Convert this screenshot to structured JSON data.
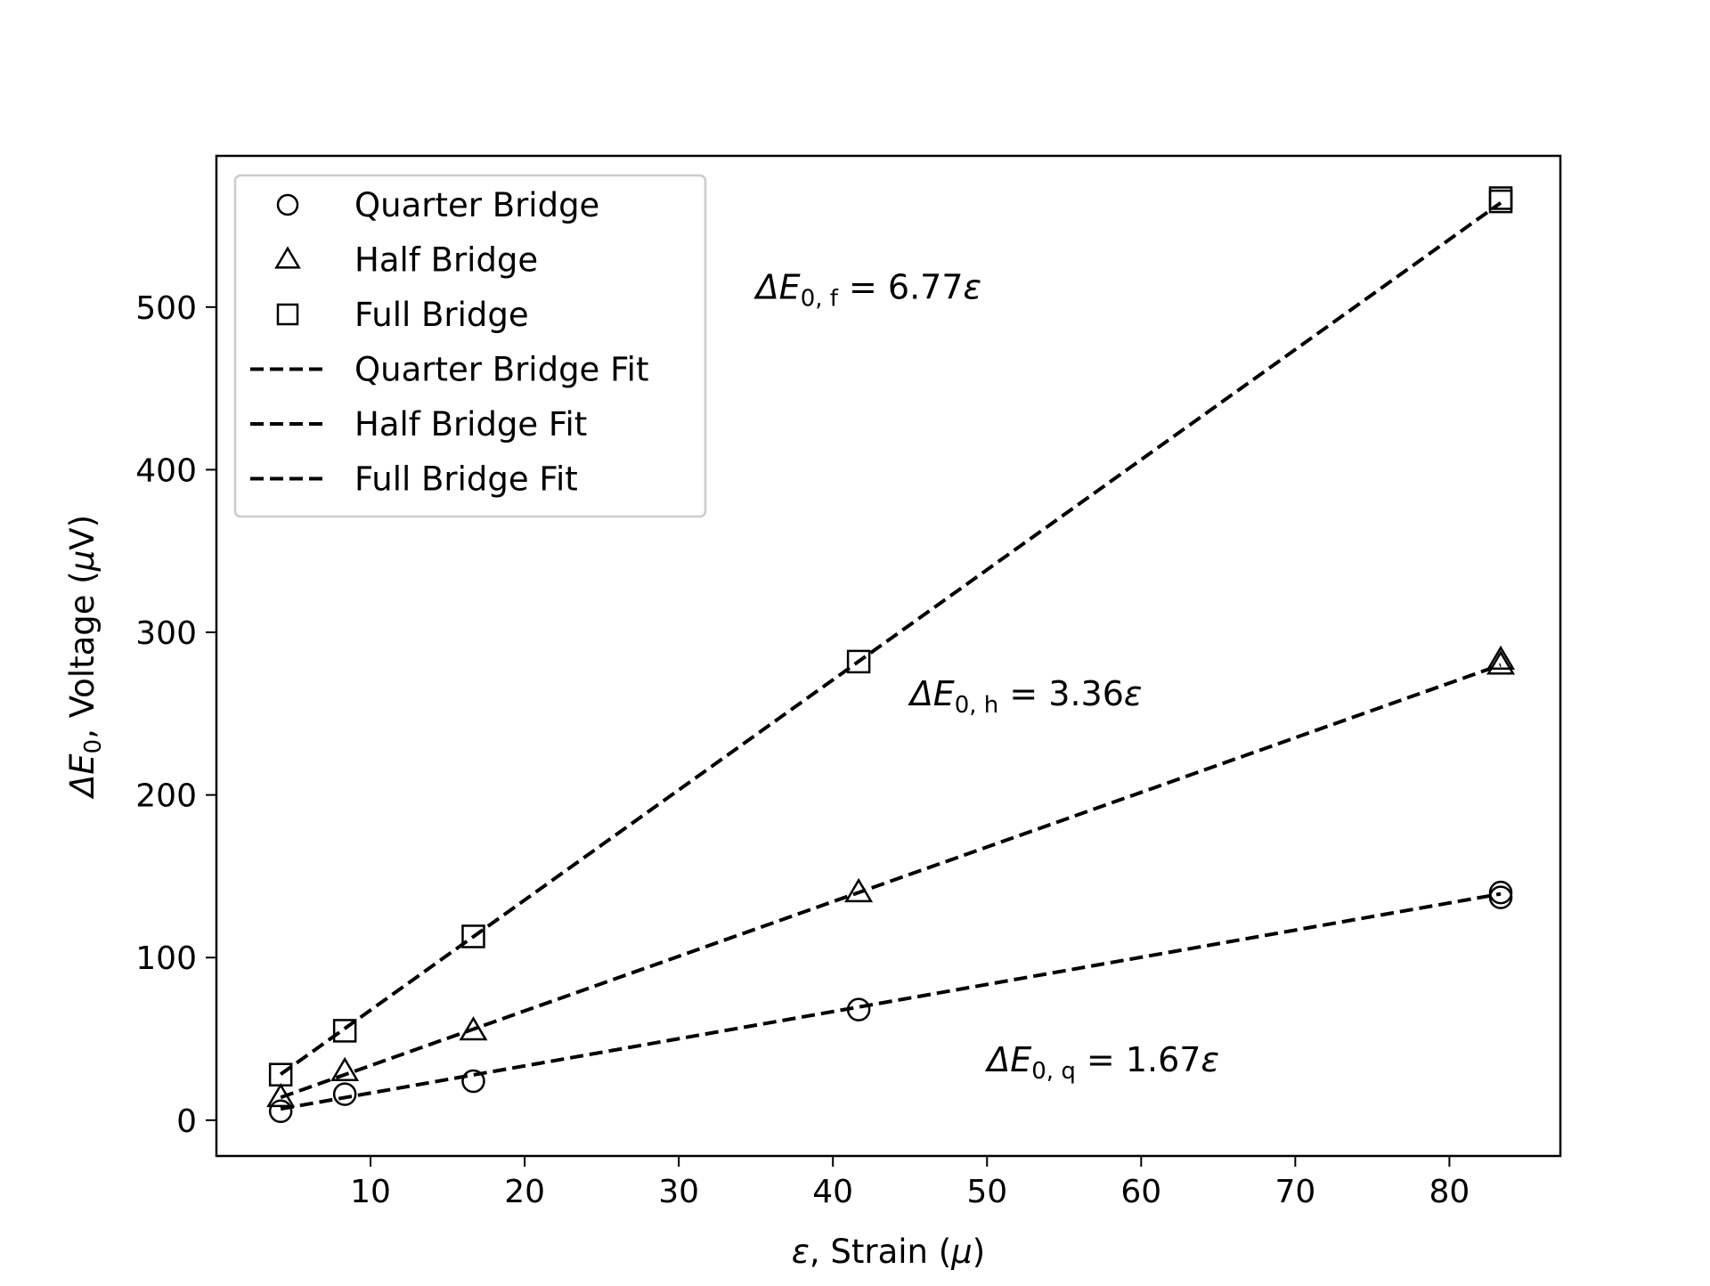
{
  "chart_data": {
    "type": "scatter",
    "xlabel": {
      "symbol": "ε",
      "text": ", Strain (",
      "unit": "μ",
      "close": ")"
    },
    "ylabel": {
      "symbol": "ΔE",
      "sub": "0",
      "text": ", Voltage (",
      "unit": "μ",
      "unit_tail": "V)"
    },
    "xlim": [
      0.0,
      87.2
    ],
    "ylim": [
      -22,
      593
    ],
    "xticks": [
      10,
      20,
      30,
      40,
      50,
      60,
      70,
      80
    ],
    "yticks": [
      0,
      100,
      200,
      300,
      400,
      500
    ],
    "grid": false,
    "legend_position": "top-left",
    "color": "#000000",
    "series": [
      {
        "name": "Quarter Bridge",
        "marker": "circle",
        "x": [
          4.17,
          8.33,
          16.67,
          41.67,
          83.33,
          83.33
        ],
        "y": [
          5.5,
          16,
          24,
          68,
          137,
          140
        ]
      },
      {
        "name": "Half Bridge",
        "marker": "triangle",
        "x": [
          4.17,
          8.33,
          16.67,
          41.67,
          83.33,
          83.33
        ],
        "y": [
          14,
          30,
          55,
          140,
          280,
          283
        ]
      },
      {
        "name": "Full Bridge",
        "marker": "square",
        "x": [
          4.17,
          8.33,
          16.67,
          41.67,
          83.33,
          83.33
        ],
        "y": [
          28,
          55,
          113,
          282,
          565,
          567
        ]
      }
    ],
    "fits": [
      {
        "name": "Quarter Bridge Fit",
        "style": "dashed",
        "slope": 1.67,
        "x_range": [
          4.17,
          83.33
        ]
      },
      {
        "name": "Half Bridge Fit",
        "style": "dashed",
        "slope": 3.36,
        "x_range": [
          4.17,
          83.33
        ]
      },
      {
        "name": "Full Bridge Fit",
        "style": "dashed",
        "slope": 6.77,
        "x_range": [
          4.17,
          83.33
        ]
      }
    ],
    "annotations": [
      {
        "id": "full",
        "sym": "ΔE",
        "sub": "0, f",
        "text": " = 6.77",
        "tail": "ε",
        "x": 35,
        "y": 505
      },
      {
        "id": "half",
        "sym": "ΔE",
        "sub": "0, h",
        "text": " = 3.36",
        "tail": "ε",
        "x": 45,
        "y": 255
      },
      {
        "id": "quarter",
        "sym": "ΔE",
        "sub": "0, q",
        "text": " = 1.67",
        "tail": "ε",
        "x": 50,
        "y": 30
      }
    ]
  }
}
